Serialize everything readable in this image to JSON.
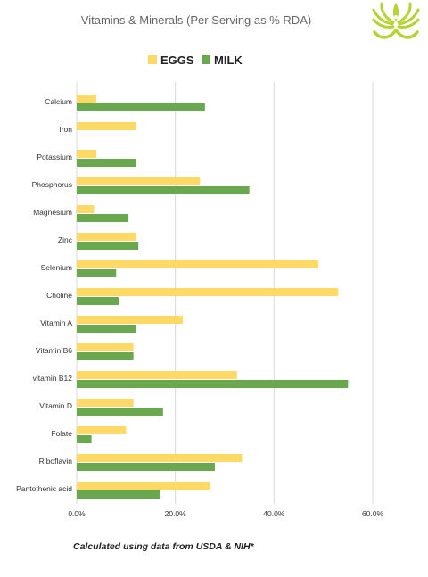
{
  "chart_data": {
    "type": "bar",
    "orientation": "horizontal",
    "title": "Vitamins & Minerals (Per Serving as % RDA)",
    "categories": [
      "Calcium",
      "Iron",
      "Potassium",
      "Phosphorus",
      "Magnesium",
      "Zinc",
      "Selenium",
      "Choline",
      "Vitamin A",
      "Vitamin B6",
      "vitamin B12",
      "Vitamin D",
      "Folate",
      "Riboflavin",
      "Pantothenic acid"
    ],
    "series": [
      {
        "name": "EGGS",
        "color": "#ffd966",
        "values": [
          4,
          12,
          4,
          25,
          3.5,
          12,
          49,
          53,
          21.5,
          11.5,
          32.5,
          11.5,
          10,
          33.5,
          27
        ]
      },
      {
        "name": "MILK",
        "color": "#6aa84f",
        "values": [
          26,
          0,
          12,
          35,
          10.5,
          12.5,
          8,
          8.5,
          12,
          11.5,
          55,
          17.5,
          3,
          28,
          17
        ]
      }
    ],
    "xlim": [
      0,
      60
    ],
    "xticks": [
      0,
      20,
      40,
      60
    ],
    "xtick_labels": [
      "0.0%",
      "20.0%",
      "40.0%",
      "60.0%"
    ],
    "grid": true,
    "legend_position": "top"
  },
  "footnote": "Calculated using data from USDA & NIH*",
  "logo": {
    "icon": "lotus-icon",
    "color": "#b5d334"
  }
}
